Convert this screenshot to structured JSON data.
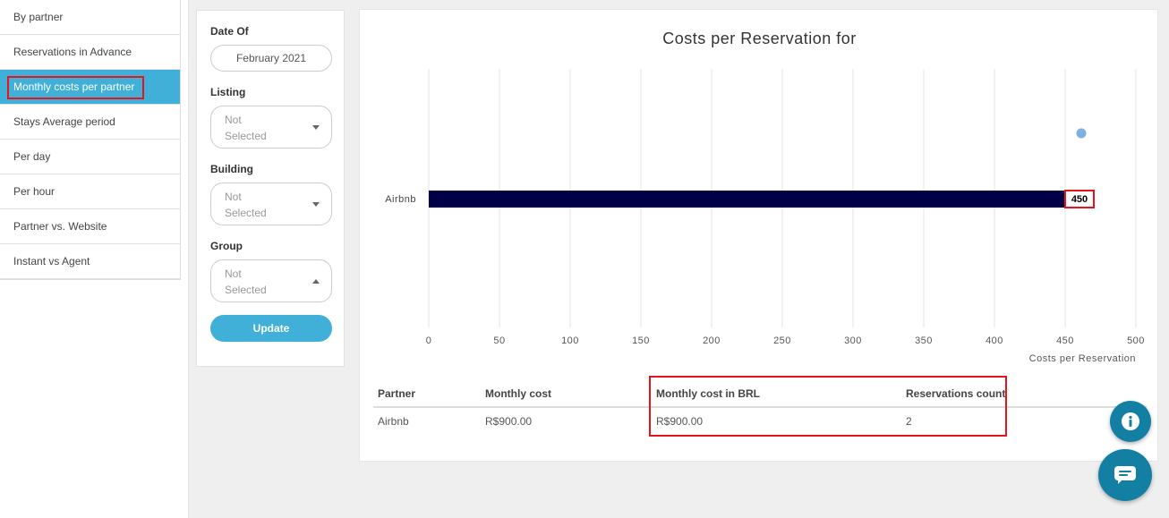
{
  "sidebar": {
    "items": [
      {
        "label": "By partner"
      },
      {
        "label": "Reservations in Advance"
      },
      {
        "label": "Monthly costs per partner"
      },
      {
        "label": "Stays Average period"
      },
      {
        "label": "Per day"
      },
      {
        "label": "Per hour"
      },
      {
        "label": "Partner vs. Website"
      },
      {
        "label": "Instant vs Agent"
      }
    ],
    "active_index": 2
  },
  "filters": {
    "date_label": "Date Of",
    "date_value": "February 2021",
    "listing_label": "Listing",
    "listing_value": "Not Selected",
    "building_label": "Building",
    "building_value": "Not Selected",
    "group_label": "Group",
    "group_value": "Not Selected",
    "update_label": "Update"
  },
  "chart_data": {
    "type": "bar",
    "orientation": "horizontal",
    "title": "Costs per Reservation for",
    "xlabel": "Costs per Reservation",
    "ylabel": "",
    "categories": [
      "Airbnb"
    ],
    "values": [
      450
    ],
    "data_labels": [
      "450"
    ],
    "xlim": [
      0,
      500
    ],
    "xticks": [
      0,
      50,
      100,
      150,
      200,
      250,
      300,
      350,
      400,
      450,
      500
    ],
    "grid": true,
    "bar_color": "#000046",
    "marker_color": "#7eb0e0"
  },
  "table": {
    "headers": [
      "Partner",
      "Monthly cost",
      "Monthly cost in BRL",
      "Reservations count"
    ],
    "rows": [
      [
        "Airbnb",
        "R$900.00",
        "R$900.00",
        "2"
      ]
    ]
  },
  "colors": {
    "accent": "#41b0d8",
    "highlight": "#e8141b",
    "fab": "#137fa3"
  }
}
